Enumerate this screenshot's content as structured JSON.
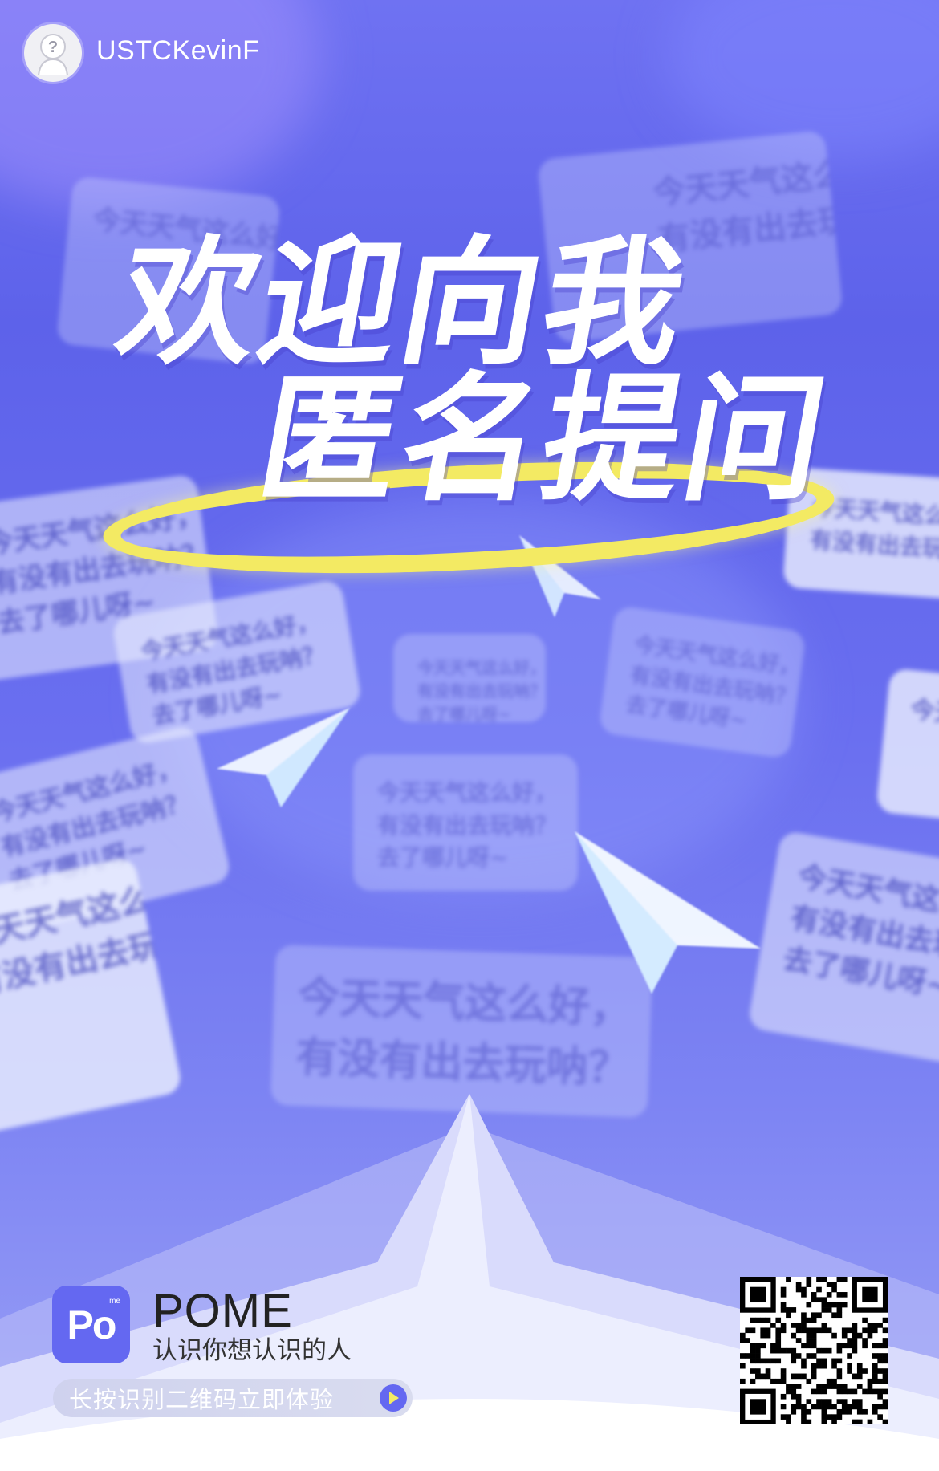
{
  "header": {
    "username": "USTCKevinF",
    "avatar_icon": "anonymous-avatar-icon"
  },
  "headline": {
    "line1": "欢迎向我",
    "line2": "匿名提问"
  },
  "background_cards": {
    "question_lines": [
      "今天天气这么好，",
      "有没有出去玩呐？",
      "去了哪儿呀~"
    ]
  },
  "footer": {
    "logo_text": "Po",
    "logo_superscript": "me",
    "brand_name": "POME",
    "slogan": "认识你想认识的人",
    "cta_label": "长按识别二维码立即体验",
    "cta_icon": "play-arrow-icon",
    "qr_icon": "qr-code-icon"
  },
  "colors": {
    "primary": "#6468f1",
    "halo_yellow": "#f3ea63",
    "background_top": "#6f72f2",
    "footer_bg": "#ffffff"
  }
}
